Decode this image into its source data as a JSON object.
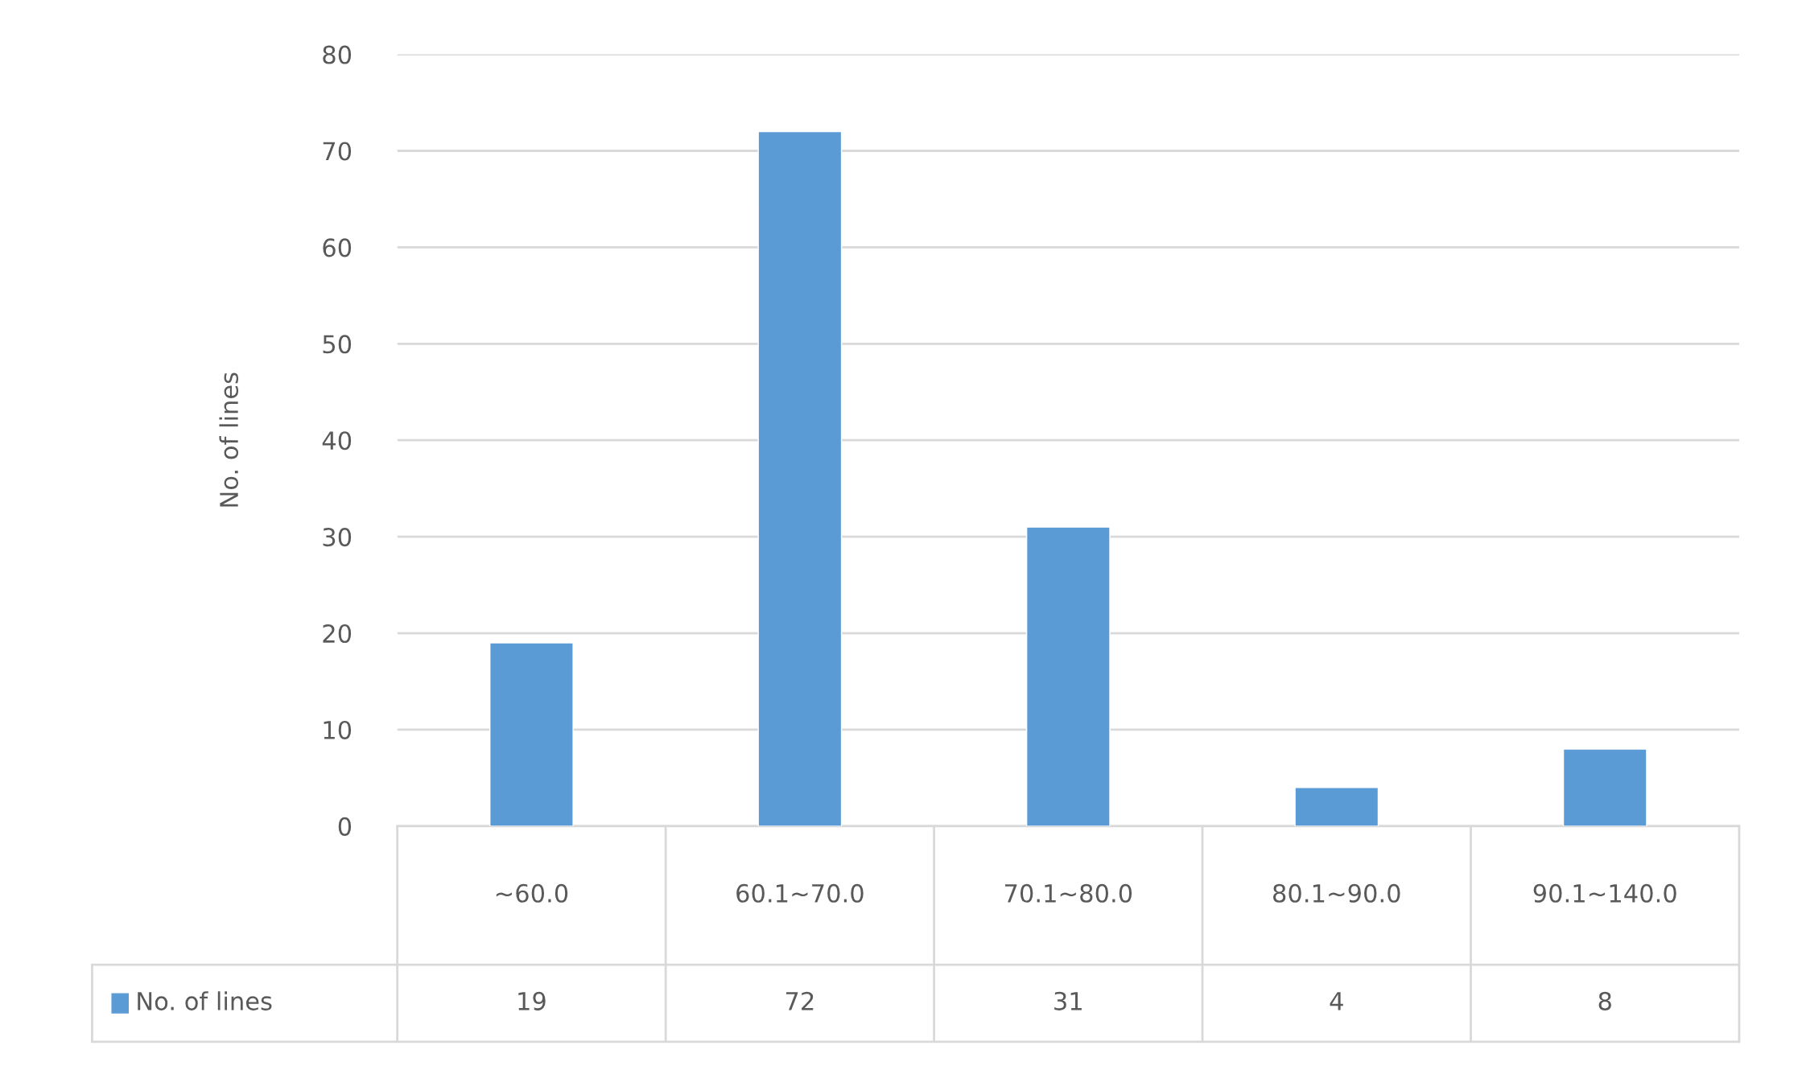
{
  "chart_data": {
    "type": "bar",
    "ylabel": "No. of lines",
    "categories": [
      "~60.0",
      "60.1~70.0",
      "70.1~80.0",
      "80.1~90.0",
      "90.1~140.0"
    ],
    "series": [
      {
        "name": "No. of lines",
        "color": "#5b9bd5",
        "values": [
          19,
          72,
          31,
          4,
          8
        ]
      }
    ],
    "ylim": [
      0,
      80
    ],
    "yticks": [
      0,
      10,
      20,
      30,
      40,
      50,
      60,
      70,
      80
    ],
    "grid": "y",
    "data_labels": true,
    "legend": "bottom"
  }
}
